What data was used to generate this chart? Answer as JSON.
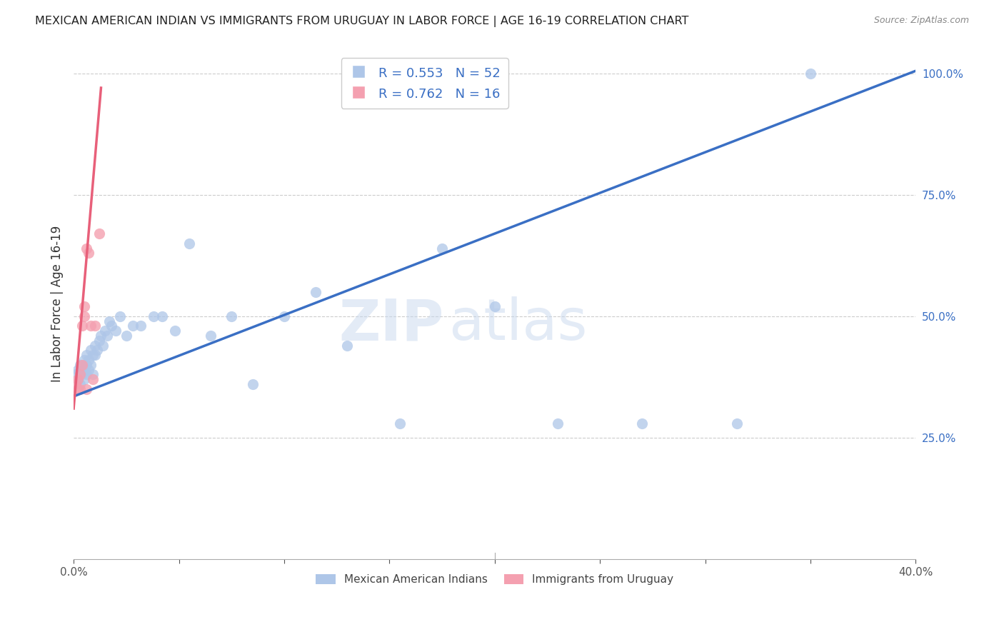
{
  "title": "MEXICAN AMERICAN INDIAN VS IMMIGRANTS FROM URUGUAY IN LABOR FORCE | AGE 16-19 CORRELATION CHART",
  "source": "Source: ZipAtlas.com",
  "ylabel": "In Labor Force | Age 16-19",
  "xmin": 0.0,
  "xmax": 0.4,
  "ymin": 0.0,
  "ymax": 1.05,
  "blue_R": 0.553,
  "blue_N": 52,
  "pink_R": 0.762,
  "pink_N": 16,
  "blue_color": "#aec6e8",
  "pink_color": "#f4a0b0",
  "blue_line_color": "#3a6fc4",
  "pink_line_color": "#e8607a",
  "legend_label_blue": "Mexican American Indians",
  "legend_label_pink": "Immigrants from Uruguay",
  "watermark_zip": "ZIP",
  "watermark_atlas": "atlas",
  "blue_x": [
    0.001,
    0.002,
    0.002,
    0.003,
    0.003,
    0.003,
    0.004,
    0.004,
    0.005,
    0.005,
    0.005,
    0.006,
    0.006,
    0.006,
    0.007,
    0.007,
    0.008,
    0.008,
    0.009,
    0.009,
    0.01,
    0.01,
    0.011,
    0.012,
    0.013,
    0.014,
    0.015,
    0.016,
    0.017,
    0.018,
    0.02,
    0.022,
    0.025,
    0.028,
    0.032,
    0.038,
    0.042,
    0.048,
    0.055,
    0.065,
    0.075,
    0.085,
    0.1,
    0.115,
    0.13,
    0.155,
    0.175,
    0.2,
    0.23,
    0.27,
    0.315,
    0.35
  ],
  "blue_y": [
    0.38,
    0.37,
    0.39,
    0.38,
    0.4,
    0.36,
    0.38,
    0.4,
    0.37,
    0.39,
    0.41,
    0.38,
    0.4,
    0.42,
    0.39,
    0.41,
    0.4,
    0.43,
    0.38,
    0.42,
    0.42,
    0.44,
    0.43,
    0.45,
    0.46,
    0.44,
    0.47,
    0.46,
    0.49,
    0.48,
    0.47,
    0.5,
    0.46,
    0.48,
    0.48,
    0.5,
    0.5,
    0.47,
    0.65,
    0.46,
    0.5,
    0.36,
    0.5,
    0.55,
    0.44,
    0.28,
    0.64,
    0.52,
    0.28,
    0.28,
    0.28,
    1.0
  ],
  "pink_x": [
    0.001,
    0.002,
    0.002,
    0.003,
    0.003,
    0.004,
    0.004,
    0.005,
    0.005,
    0.006,
    0.006,
    0.007,
    0.008,
    0.009,
    0.01,
    0.012
  ],
  "pink_y": [
    0.36,
    0.35,
    0.37,
    0.38,
    0.35,
    0.4,
    0.48,
    0.5,
    0.52,
    0.64,
    0.35,
    0.63,
    0.48,
    0.37,
    0.48,
    0.67
  ],
  "blue_trend_x": [
    0.0,
    0.4
  ],
  "blue_trend_y": [
    0.335,
    1.005
  ],
  "pink_trend_x": [
    0.0,
    0.013
  ],
  "pink_trend_y": [
    0.31,
    0.97
  ]
}
